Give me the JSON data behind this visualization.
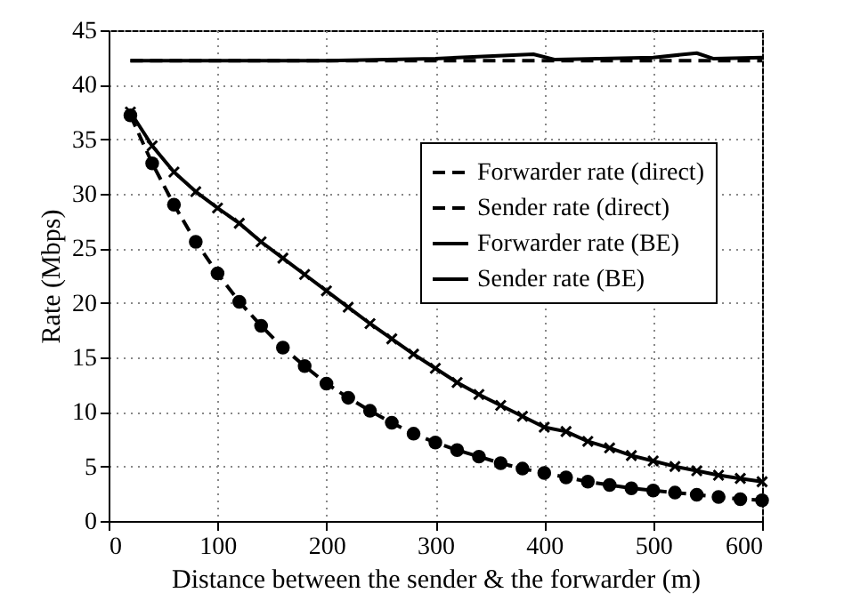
{
  "chart_data": {
    "type": "line",
    "xlabel": "Distance between the sender & the forwarder (m)",
    "ylabel": "Rate (Mbps)",
    "xlim": [
      0,
      600
    ],
    "xticks": [
      0,
      100,
      200,
      300,
      400,
      500,
      600
    ],
    "ylim": [
      0,
      45
    ],
    "yticks": [
      0,
      5,
      10,
      15,
      20,
      25,
      30,
      35,
      40,
      45
    ],
    "grid": true,
    "legend": "right",
    "series": [
      {
        "name": "Forwarder rate (direct)",
        "color": "#000000",
        "line_style": "dashed",
        "marker": "none",
        "x": [
          20,
          600
        ],
        "values": [
          42.2,
          42.2
        ]
      },
      {
        "name": "Sender rate (direct)",
        "color": "#000000",
        "line_style": "dashed",
        "marker": "circle",
        "x": [
          20,
          40,
          60,
          80,
          100,
          120,
          140,
          160,
          180,
          200,
          220,
          240,
          260,
          280,
          300,
          320,
          340,
          360,
          380,
          400,
          420,
          440,
          460,
          480,
          500,
          520,
          540,
          560,
          580,
          600
        ],
        "values": [
          37.2,
          32.8,
          29,
          25.6,
          22.7,
          20.1,
          17.9,
          15.9,
          14.2,
          12.6,
          11.3,
          10.1,
          9,
          8,
          7.2,
          6.5,
          5.9,
          5.3,
          4.8,
          4.4,
          4,
          3.6,
          3.3,
          3,
          2.8,
          2.6,
          2.4,
          2.2,
          2,
          1.9
        ]
      },
      {
        "name": "Forwarder rate (BE)",
        "color": "#000000",
        "line_style": "solid",
        "marker": "none",
        "x": [
          20,
          200,
          300,
          390,
          410,
          500,
          540,
          555,
          600
        ],
        "values": [
          42.2,
          42.2,
          42.4,
          42.8,
          42.3,
          42.5,
          42.9,
          42.4,
          42.5
        ]
      },
      {
        "name": "Sender rate (BE)",
        "color": "#000000",
        "line_style": "solid",
        "marker": "cross",
        "x": [
          20,
          40,
          60,
          80,
          100,
          120,
          140,
          160,
          180,
          200,
          220,
          240,
          260,
          280,
          300,
          320,
          340,
          360,
          380,
          400,
          420,
          440,
          460,
          480,
          500,
          520,
          540,
          560,
          580,
          600
        ],
        "values": [
          37.5,
          34.4,
          32,
          30.2,
          28.7,
          27.3,
          25.6,
          24.1,
          22.6,
          21.1,
          19.6,
          18.1,
          16.7,
          15.3,
          14,
          12.7,
          11.6,
          10.6,
          9.6,
          8.6,
          8.2,
          7.3,
          6.7,
          6,
          5.5,
          5,
          4.6,
          4.2,
          3.9,
          3.6
        ]
      }
    ]
  }
}
